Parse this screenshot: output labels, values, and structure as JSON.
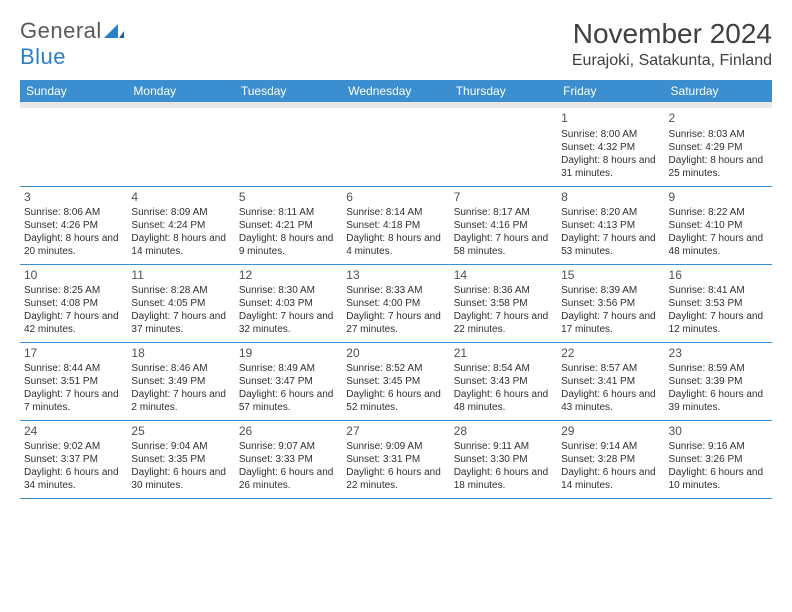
{
  "brand": {
    "word1": "General",
    "word2": "Blue"
  },
  "title": "November 2024",
  "location": "Eurajoki, Satakunta, Finland",
  "colors": {
    "header_bg": "#3b8fd1",
    "header_text": "#ffffff",
    "divider": "#3b8fd1",
    "spacer_bg": "#e8e8e8",
    "body_text": "#303030",
    "title_text": "#404040",
    "logo_gray": "#5a5a5a",
    "logo_blue": "#2a7fc9"
  },
  "day_headers": [
    "Sunday",
    "Monday",
    "Tuesday",
    "Wednesday",
    "Thursday",
    "Friday",
    "Saturday"
  ],
  "weeks": [
    [
      null,
      null,
      null,
      null,
      null,
      {
        "n": "1",
        "sr": "8:00 AM",
        "ss": "4:32 PM",
        "dl": "8 hours and 31 minutes."
      },
      {
        "n": "2",
        "sr": "8:03 AM",
        "ss": "4:29 PM",
        "dl": "8 hours and 25 minutes."
      }
    ],
    [
      {
        "n": "3",
        "sr": "8:06 AM",
        "ss": "4:26 PM",
        "dl": "8 hours and 20 minutes."
      },
      {
        "n": "4",
        "sr": "8:09 AM",
        "ss": "4:24 PM",
        "dl": "8 hours and 14 minutes."
      },
      {
        "n": "5",
        "sr": "8:11 AM",
        "ss": "4:21 PM",
        "dl": "8 hours and 9 minutes."
      },
      {
        "n": "6",
        "sr": "8:14 AM",
        "ss": "4:18 PM",
        "dl": "8 hours and 4 minutes."
      },
      {
        "n": "7",
        "sr": "8:17 AM",
        "ss": "4:16 PM",
        "dl": "7 hours and 58 minutes."
      },
      {
        "n": "8",
        "sr": "8:20 AM",
        "ss": "4:13 PM",
        "dl": "7 hours and 53 minutes."
      },
      {
        "n": "9",
        "sr": "8:22 AM",
        "ss": "4:10 PM",
        "dl": "7 hours and 48 minutes."
      }
    ],
    [
      {
        "n": "10",
        "sr": "8:25 AM",
        "ss": "4:08 PM",
        "dl": "7 hours and 42 minutes."
      },
      {
        "n": "11",
        "sr": "8:28 AM",
        "ss": "4:05 PM",
        "dl": "7 hours and 37 minutes."
      },
      {
        "n": "12",
        "sr": "8:30 AM",
        "ss": "4:03 PM",
        "dl": "7 hours and 32 minutes."
      },
      {
        "n": "13",
        "sr": "8:33 AM",
        "ss": "4:00 PM",
        "dl": "7 hours and 27 minutes."
      },
      {
        "n": "14",
        "sr": "8:36 AM",
        "ss": "3:58 PM",
        "dl": "7 hours and 22 minutes."
      },
      {
        "n": "15",
        "sr": "8:39 AM",
        "ss": "3:56 PM",
        "dl": "7 hours and 17 minutes."
      },
      {
        "n": "16",
        "sr": "8:41 AM",
        "ss": "3:53 PM",
        "dl": "7 hours and 12 minutes."
      }
    ],
    [
      {
        "n": "17",
        "sr": "8:44 AM",
        "ss": "3:51 PM",
        "dl": "7 hours and 7 minutes."
      },
      {
        "n": "18",
        "sr": "8:46 AM",
        "ss": "3:49 PM",
        "dl": "7 hours and 2 minutes."
      },
      {
        "n": "19",
        "sr": "8:49 AM",
        "ss": "3:47 PM",
        "dl": "6 hours and 57 minutes."
      },
      {
        "n": "20",
        "sr": "8:52 AM",
        "ss": "3:45 PM",
        "dl": "6 hours and 52 minutes."
      },
      {
        "n": "21",
        "sr": "8:54 AM",
        "ss": "3:43 PM",
        "dl": "6 hours and 48 minutes."
      },
      {
        "n": "22",
        "sr": "8:57 AM",
        "ss": "3:41 PM",
        "dl": "6 hours and 43 minutes."
      },
      {
        "n": "23",
        "sr": "8:59 AM",
        "ss": "3:39 PM",
        "dl": "6 hours and 39 minutes."
      }
    ],
    [
      {
        "n": "24",
        "sr": "9:02 AM",
        "ss": "3:37 PM",
        "dl": "6 hours and 34 minutes."
      },
      {
        "n": "25",
        "sr": "9:04 AM",
        "ss": "3:35 PM",
        "dl": "6 hours and 30 minutes."
      },
      {
        "n": "26",
        "sr": "9:07 AM",
        "ss": "3:33 PM",
        "dl": "6 hours and 26 minutes."
      },
      {
        "n": "27",
        "sr": "9:09 AM",
        "ss": "3:31 PM",
        "dl": "6 hours and 22 minutes."
      },
      {
        "n": "28",
        "sr": "9:11 AM",
        "ss": "3:30 PM",
        "dl": "6 hours and 18 minutes."
      },
      {
        "n": "29",
        "sr": "9:14 AM",
        "ss": "3:28 PM",
        "dl": "6 hours and 14 minutes."
      },
      {
        "n": "30",
        "sr": "9:16 AM",
        "ss": "3:26 PM",
        "dl": "6 hours and 10 minutes."
      }
    ]
  ],
  "labels": {
    "sunrise": "Sunrise:",
    "sunset": "Sunset:",
    "daylight": "Daylight:"
  }
}
